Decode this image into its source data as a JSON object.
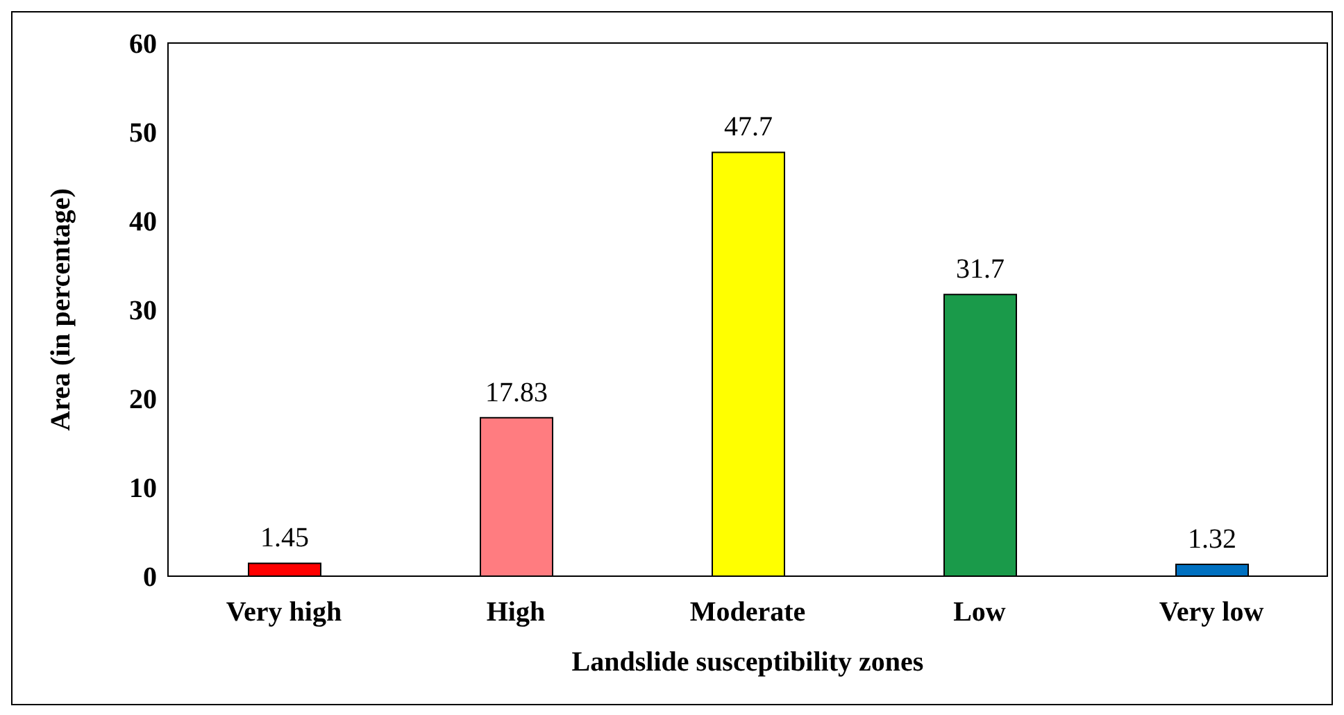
{
  "chart_data": {
    "type": "bar",
    "xlabel": "Landslide susceptibility zones",
    "ylabel": "Area (in percentage)",
    "categories": [
      "Very high",
      "High",
      "Moderate",
      "Low",
      "Very low"
    ],
    "values": [
      1.45,
      17.83,
      47.7,
      31.7,
      1.32
    ],
    "colors": [
      "#ff0000",
      "#ff7c80",
      "#ffff00",
      "#1a9a4a",
      "#0070c0"
    ],
    "ylim": [
      0,
      60
    ],
    "yticks": [
      0,
      10,
      20,
      30,
      40,
      50,
      60
    ],
    "grid": false,
    "data_labels": true
  }
}
